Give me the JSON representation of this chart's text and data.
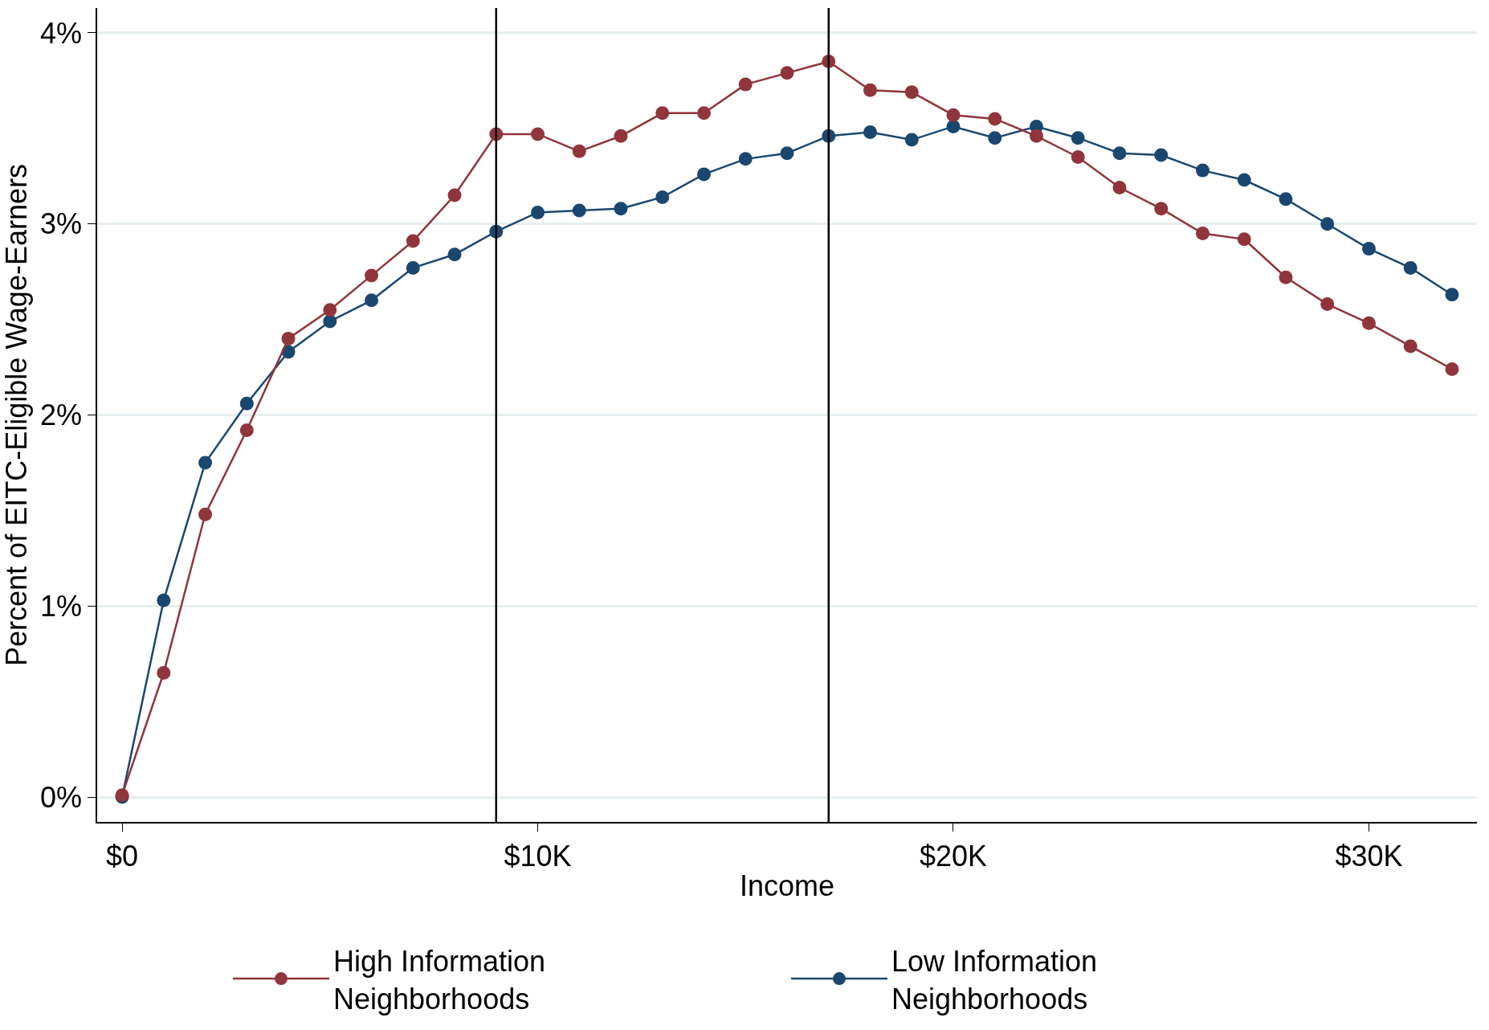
{
  "chart_data": {
    "type": "line",
    "xlabel": "Income",
    "ylabel": "Percent of EITC-Eligible Wage-Earners",
    "x": [
      0,
      1000,
      2000,
      3000,
      4000,
      5000,
      6000,
      7000,
      8000,
      9000,
      10000,
      11000,
      12000,
      13000,
      14000,
      15000,
      16000,
      17000,
      18000,
      19000,
      20000,
      21000,
      22000,
      23000,
      24000,
      25000,
      26000,
      27000,
      28000,
      29000,
      30000,
      31000,
      32000
    ],
    "series": [
      {
        "name": "High Information Neighborhoods",
        "color": "#90353b",
        "values": [
          0.01,
          0.65,
          1.48,
          1.92,
          2.4,
          2.55,
          2.73,
          2.91,
          3.15,
          3.47,
          3.47,
          3.38,
          3.46,
          3.58,
          3.58,
          3.73,
          3.79,
          3.85,
          3.7,
          3.69,
          3.57,
          3.55,
          3.46,
          3.35,
          3.19,
          3.08,
          2.95,
          2.92,
          2.72,
          2.58,
          2.48,
          2.36,
          2.24
        ]
      },
      {
        "name": "Low Information Neighborhoods",
        "color": "#1a476f",
        "values": [
          0.0,
          1.03,
          1.75,
          2.06,
          2.33,
          2.49,
          2.6,
          2.77,
          2.84,
          2.96,
          3.06,
          3.07,
          3.08,
          3.14,
          3.26,
          3.34,
          3.37,
          3.46,
          3.48,
          3.44,
          3.51,
          3.45,
          3.51,
          3.45,
          3.37,
          3.36,
          3.28,
          3.23,
          3.13,
          3.0,
          2.87,
          2.77,
          2.63
        ]
      }
    ],
    "xlim": [
      -600,
      32600
    ],
    "ylim": [
      -0.13,
      4.13
    ],
    "xticks": [
      {
        "value": 0,
        "label": "$0"
      },
      {
        "value": 10000,
        "label": "$10K"
      },
      {
        "value": 20000,
        "label": "$20K"
      },
      {
        "value": 30000,
        "label": "$30K"
      }
    ],
    "yticks": [
      {
        "value": 0,
        "label": "0%"
      },
      {
        "value": 1,
        "label": "1%"
      },
      {
        "value": 2,
        "label": "2%"
      },
      {
        "value": 3,
        "label": "3%"
      },
      {
        "value": 4,
        "label": "4%"
      }
    ],
    "ref_lines": [
      {
        "axis": "x",
        "value": 9000,
        "color": "#000000"
      },
      {
        "axis": "x",
        "value": 17000,
        "color": "#000000"
      }
    ],
    "grid": "y",
    "legend": "bottom",
    "marker": "circle",
    "line_style": "solid"
  }
}
